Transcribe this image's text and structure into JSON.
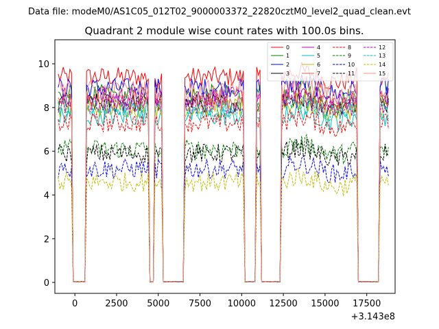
{
  "chart_data": {
    "type": "line",
    "suptitle": "Data file: modeM0/AS1C05_012T02_9000003372_22820cztM0_level2_quad_clean.evt",
    "title": "Quadrant 2 module wise count rates with 100.0s bins.",
    "xlabel": "",
    "ylabel": "",
    "x_offset_label": "+3.143e8",
    "xlim": [
      -1200,
      19200
    ],
    "ylim": [
      -0.5,
      11.1
    ],
    "x_ticks": [
      0,
      2500,
      5000,
      7500,
      10000,
      12500,
      15000,
      17500
    ],
    "x_tick_labels": [
      "0",
      "2500",
      "5000",
      "7500",
      "10000",
      "12500",
      "15000",
      "17500"
    ],
    "y_ticks": [
      0,
      2,
      4,
      6,
      8,
      10
    ],
    "y_tick_labels": [
      "0",
      "2",
      "4",
      "6",
      "8",
      "10"
    ],
    "legend_position": "top-right",
    "on_segments": [
      [
        -1000,
        -200
      ],
      [
        700,
        4400
      ],
      [
        4800,
        5200
      ],
      [
        6600,
        10100
      ],
      [
        10900,
        11100
      ],
      [
        12400,
        16900
      ],
      [
        18300,
        18800
      ]
    ],
    "series": [
      {
        "name": "0",
        "color": "#ff0000",
        "style": "solid",
        "level": 9.4
      },
      {
        "name": "1",
        "color": "#008000",
        "style": "solid",
        "level": 8.6
      },
      {
        "name": "2",
        "color": "#0000ff",
        "style": "solid",
        "level": 8.9
      },
      {
        "name": "3",
        "color": "#000000",
        "style": "solid",
        "level": 8.2
      },
      {
        "name": "4",
        "color": "#bf00bf",
        "style": "solid",
        "level": 8.5
      },
      {
        "name": "5",
        "color": "#00bfbf",
        "style": "solid",
        "level": 7.6
      },
      {
        "name": "6",
        "color": "#bfbf00",
        "style": "solid",
        "level": 8.0
      },
      {
        "name": "7",
        "color": "#e06050",
        "style": "solid",
        "level": 8.3
      },
      {
        "name": "8",
        "color": "#ff0000",
        "style": "dashed",
        "level": 7.3
      },
      {
        "name": "9",
        "color": "#008000",
        "style": "dashed",
        "level": 6.1
      },
      {
        "name": "10",
        "color": "#0000ff",
        "style": "dashed",
        "level": 5.2
      },
      {
        "name": "11",
        "color": "#000000",
        "style": "dashed",
        "level": 5.9
      },
      {
        "name": "12",
        "color": "#bf00bf",
        "style": "dashed",
        "level": 8.1
      },
      {
        "name": "13",
        "color": "#00bfbf",
        "style": "dashed",
        "level": 7.9
      },
      {
        "name": "14",
        "color": "#bfbf00",
        "style": "dashed",
        "level": 4.6
      },
      {
        "name": "15",
        "color": "#ff9080",
        "style": "solid",
        "level": 8.8
      }
    ]
  }
}
